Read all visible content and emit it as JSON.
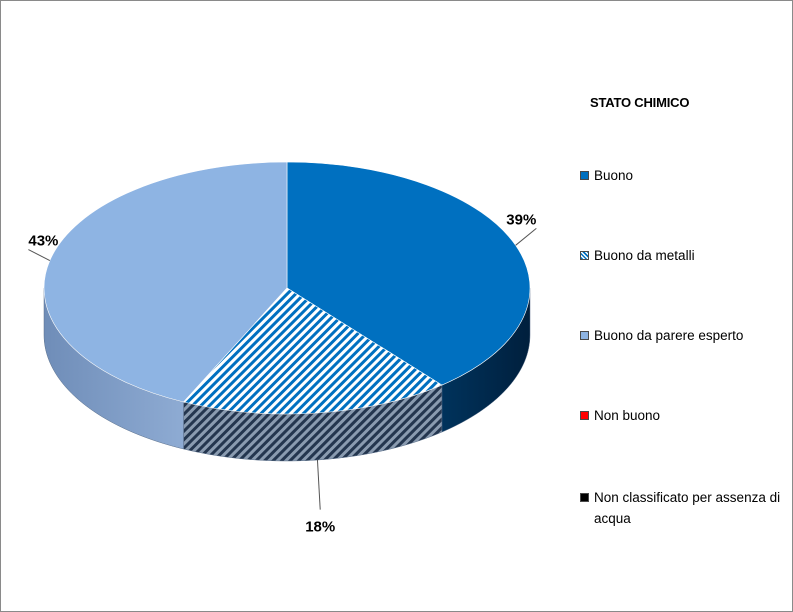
{
  "chart_data": {
    "type": "pie",
    "title": "",
    "legend": {
      "title": "STATO CHIMICO",
      "position": "right"
    },
    "series": [
      {
        "name": "Buono",
        "value": 39,
        "label": "39%",
        "color": "#0070C0",
        "pattern": "solid"
      },
      {
        "name": "Buono da metalli",
        "value": 18,
        "label": "18%",
        "color": "#0070C0",
        "pattern": "diagonal-stripes"
      },
      {
        "name": "Buono da parere esperto",
        "value": 43,
        "label": "43%",
        "color": "#8EB4E3",
        "pattern": "solid"
      },
      {
        "name": "Non buono",
        "value": 0,
        "label": "",
        "color": "#FF0000",
        "pattern": "solid"
      },
      {
        "name": "Non classificato per assenza di acqua",
        "value": 0,
        "label": "",
        "color": "#000000",
        "pattern": "solid"
      }
    ]
  }
}
